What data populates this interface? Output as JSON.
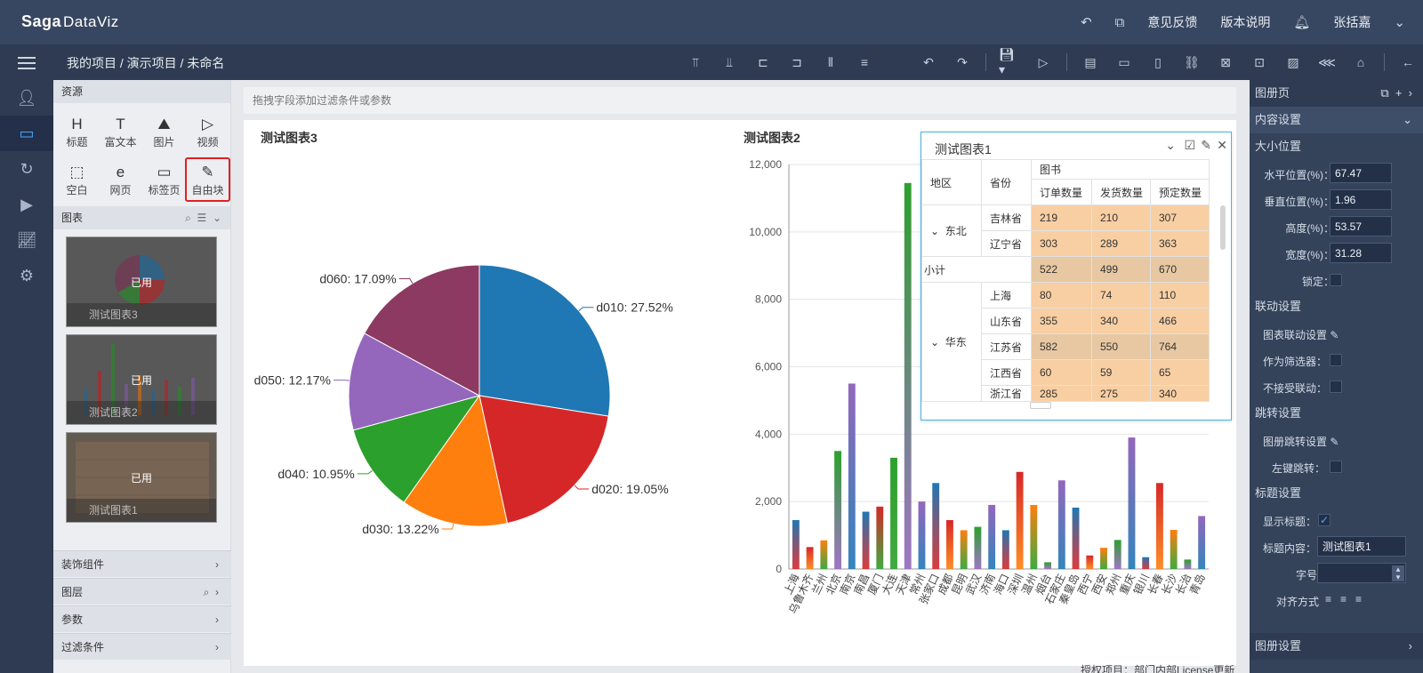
{
  "app": {
    "logo": "Saga",
    "logo_sub": "DataViz"
  },
  "topbar": {
    "feedback": "意见反馈",
    "version": "版本说明",
    "user": "张括嘉"
  },
  "breadcrumb": {
    "text": "我的项目 / 演示项目 / 未命名"
  },
  "resources": {
    "header": "资源",
    "items": [
      {
        "glyph": "H",
        "label": "标题"
      },
      {
        "glyph": "T",
        "label": "富文本"
      },
      {
        "glyph": "⛰",
        "label": "图片"
      },
      {
        "glyph": "▷",
        "label": "视频"
      },
      {
        "glyph": "⬚",
        "label": "空白"
      },
      {
        "glyph": "e",
        "label": "网页"
      },
      {
        "glyph": "▭",
        "label": "标签页"
      },
      {
        "glyph": "✎",
        "label": "自由块"
      }
    ],
    "charts_header": "图表",
    "used_label": "已用",
    "thumbs": [
      {
        "name": "测试图表3"
      },
      {
        "name": "测试图表2"
      },
      {
        "name": "测试图表1"
      }
    ],
    "accordions": [
      "装饰组件",
      "图层",
      "参数",
      "过滤条件"
    ]
  },
  "filterbar": {
    "placeholder": "拖拽字段添加过滤条件或参数"
  },
  "pie": {
    "title": "测试图表3",
    "chart_data": {
      "type": "pie",
      "slices": [
        {
          "name": "d010",
          "label": "d010: 27.52%",
          "value": 27.52,
          "color": "#1f77b4"
        },
        {
          "name": "d020",
          "label": "d020: 19.05%",
          "value": 19.05,
          "color": "#d62728"
        },
        {
          "name": "d030",
          "label": "d030: 13.22%",
          "value": 13.22,
          "color": "#ff7f0e"
        },
        {
          "name": "d040",
          "label": "d040: 10.95%",
          "value": 10.95,
          "color": "#2ca02c"
        },
        {
          "name": "d050",
          "label": "d050: 12.17%",
          "value": 12.17,
          "color": "#9467bd"
        },
        {
          "name": "d060",
          "label": "d060: 17.09%",
          "value": 17.09,
          "color": "#8c3a62"
        }
      ]
    }
  },
  "bar": {
    "title": "测试图表2",
    "chart_data": {
      "type": "bar",
      "ylim": [
        0,
        12000
      ],
      "yticks": [
        "0",
        "2,000",
        "4,000",
        "6,000",
        "8,000",
        "10,000",
        "12,000"
      ],
      "categories": [
        "上海",
        "乌鲁木齐",
        "兰州",
        "北京",
        "南京",
        "南昌",
        "厦门",
        "大连",
        "天津",
        "常州",
        "张家口",
        "成都",
        "昆明",
        "武汉",
        "济南",
        "海口",
        "深圳",
        "温州",
        "烟台",
        "石家庄",
        "秦皇岛",
        "西宁",
        "西安",
        "郑州",
        "重庆",
        "银川",
        "长春",
        "长沙",
        "长治",
        "青岛"
      ],
      "values": [
        1450,
        650,
        850,
        3500,
        5500,
        1700,
        1850,
        3300,
        11450,
        2000,
        2550,
        1450,
        1150,
        1250,
        1900,
        1150,
        2880,
        1900,
        200,
        2630,
        1820,
        400,
        630,
        860,
        3900,
        350,
        2550,
        1160,
        280,
        1570
      ],
      "colors": [
        "#1f77b4",
        "#d62728",
        "#ff7f0e",
        "#2ca02c",
        "#9467bd",
        "#1f77b4",
        "#d62728",
        "#2ca02c",
        "#2ca02c",
        "#9467bd",
        "#1f77b4",
        "#d62728",
        "#ff7f0e",
        "#2ca02c",
        "#9467bd",
        "#1f77b4",
        "#d62728",
        "#ff7f0e",
        "#2ca02c",
        "#9467bd",
        "#1f77b4",
        "#d62728",
        "#ff7f0e",
        "#2ca02c",
        "#9467bd",
        "#1f77b4",
        "#d62728",
        "#ff7f0e",
        "#2ca02c",
        "#9467bd"
      ]
    }
  },
  "popup": {
    "title": "测试图表1",
    "headers": {
      "region": "地区",
      "province": "省份",
      "group": "图书",
      "c1": "订单数量",
      "c2": "发货数量",
      "c3": "预定数量"
    },
    "rows": [
      {
        "region": "东北",
        "province": "吉林省",
        "v": [
          "219",
          "210",
          "307"
        ]
      },
      {
        "region": "",
        "province": "辽宁省",
        "v": [
          "303",
          "289",
          "363"
        ]
      },
      {
        "subtotal": "小计",
        "v": [
          "522",
          "499",
          "670"
        ]
      },
      {
        "region": "华东",
        "province": "上海",
        "v": [
          "80",
          "74",
          "110"
        ]
      },
      {
        "region": "",
        "province": "山东省",
        "v": [
          "355",
          "340",
          "466"
        ]
      },
      {
        "region": "",
        "province": "江苏省",
        "v": [
          "582",
          "550",
          "764"
        ]
      },
      {
        "region": "",
        "province": "江西省",
        "v": [
          "60",
          "59",
          "65"
        ]
      },
      {
        "region": "",
        "province": "浙江省",
        "v": [
          "285",
          "275",
          "340"
        ]
      }
    ]
  },
  "right": {
    "header": "图册页",
    "content_settings": "内容设置",
    "size_pos": "大小位置",
    "h_pos_label": "水平位置(%)：",
    "h_pos": "67.47",
    "v_pos_label": "垂直位置(%)：",
    "v_pos": "1.96",
    "height_label": "高度(%)：",
    "height": "53.57",
    "width_label": "宽度(%)：",
    "width": "31.28",
    "lock_label": "锁定：",
    "link_settings": "联动设置",
    "chart_link": "图表联动设置",
    "as_filter": "作为筛选器：",
    "no_link": "不接受联动：",
    "jump_settings": "跳转设置",
    "album_jump": "图册跳转设置",
    "left_jump": "左键跳转：",
    "title_settings": "标题设置",
    "show_title": "显示标题：",
    "title_content_label": "标题内容：",
    "title_content": "测试图表1",
    "font_size": "字号",
    "align": "对齐方式",
    "album_settings": "图册设置"
  },
  "footer": {
    "license": "授权项目：部门内部License更新"
  }
}
